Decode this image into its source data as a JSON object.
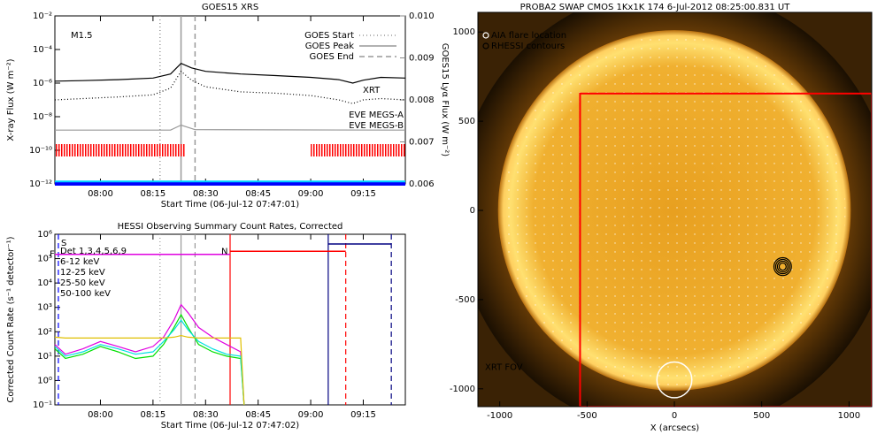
{
  "chart_data": [
    {
      "type": "line",
      "title": "GOES15 XRS",
      "log_scale": true,
      "xlabel": "Start Time (06-Jul-12 07:47:01)",
      "ylabel": "X-ray Flux (W m⁻²)",
      "y2label": "GOES15 Lyα Flux (W m⁻²)",
      "xlim": [
        "07:47",
        "09:27"
      ],
      "xticks": [
        "08:00",
        "08:15",
        "08:30",
        "08:45",
        "09:00",
        "09:15"
      ],
      "ylim": [
        1e-12,
        0.01
      ],
      "yticks": [
        {
          "value": 1e-12,
          "label": "10⁻¹²"
        },
        {
          "value": 1e-10,
          "label": "10⁻¹⁰"
        },
        {
          "value": 1e-08,
          "label": "10⁻⁸"
        },
        {
          "value": 1e-06,
          "label": "10⁻⁶"
        },
        {
          "value": 0.0001,
          "label": "10⁻⁴"
        },
        {
          "value": 0.01,
          "label": "10⁻²"
        }
      ],
      "y2lim": [
        0.006,
        0.01
      ],
      "y2ticks": [
        0.006,
        0.007,
        0.008,
        0.009,
        {
          "value": 0.01,
          "label": "0.010"
        }
      ],
      "series": [
        {
          "color": "#000000",
          "style": "solid",
          "x": [
            "07:47",
            "07:55",
            "08:05",
            "08:15",
            "08:20",
            "08:23",
            "08:26",
            "08:30",
            "08:40",
            "08:50",
            "09:00",
            "09:08",
            "09:12",
            "09:15",
            "09:20",
            "09:27"
          ],
          "values": [
            1.3e-06,
            1.4e-06,
            1.6e-06,
            2e-06,
            3.5e-06,
            1.5e-05,
            8e-06,
            5e-06,
            3.5e-06,
            2.8e-06,
            2.2e-06,
            1.6e-06,
            1e-06,
            1.5e-06,
            2.2e-06,
            2e-06
          ]
        },
        {
          "color": "#000000",
          "style": "dotted",
          "x": [
            "07:47",
            "07:55",
            "08:05",
            "08:15",
            "08:20",
            "08:23",
            "08:26",
            "08:30",
            "08:40",
            "08:50",
            "09:00",
            "09:08",
            "09:12",
            "09:15",
            "09:20",
            "09:27"
          ],
          "values": [
            1e-07,
            1.2e-07,
            1.5e-07,
            2e-07,
            5e-07,
            5e-06,
            1.5e-06,
            6e-07,
            3e-07,
            2.5e-07,
            1.8e-07,
            1e-07,
            6e-08,
            1e-07,
            1.2e-07,
            1e-07
          ]
        },
        {
          "color": "#999999",
          "style": "solid",
          "axis": "y2",
          "x": [
            "07:47",
            "08:20",
            "08:23",
            "08:27",
            "09:27"
          ],
          "values": [
            0.00728,
            0.00728,
            0.0074,
            0.00729,
            0.00728
          ]
        },
        {
          "name": "EVE MEGS-A",
          "color": "#0000ff",
          "style": "solid",
          "width": 4,
          "x": [
            "07:47",
            "09:27"
          ],
          "values": [
            1e-12,
            1e-12
          ]
        },
        {
          "name": "EVE MEGS-B",
          "color": "#00d0ff",
          "style": "solid",
          "width": 2,
          "x": [
            "07:47",
            "09:27"
          ],
          "values": [
            1.4e-12,
            1.4e-12
          ]
        }
      ],
      "events": [
        {
          "name": "GOES Start",
          "x": "08:17",
          "style": "dotted",
          "color": "#999999"
        },
        {
          "name": "GOES Peak",
          "x": "08:23",
          "style": "solid",
          "color": "#999999"
        },
        {
          "name": "GOES End",
          "x": "08:27",
          "style": "dashed",
          "color": "#999999"
        }
      ],
      "flare_class": "M1.5",
      "xrt": {
        "label": "XRT",
        "color": "#ff0000",
        "y": 1e-10,
        "intervals": [
          [
            "07:47",
            "08:24"
          ],
          [
            "09:00",
            "09:27"
          ]
        ]
      }
    },
    {
      "type": "line",
      "title": "HESSI Observing Summary Count Rates, Corrected",
      "log_scale": true,
      "xlabel": "Start Time (06-Jul-12 07:47:02)",
      "ylabel": "Corrected Count Rate (s⁻¹ detector⁻¹)",
      "xlim": [
        "07:47",
        "09:27"
      ],
      "xticks": [
        "08:00",
        "08:15",
        "08:30",
        "08:45",
        "09:00",
        "09:15"
      ],
      "ylim": [
        0.1,
        1000000.0
      ],
      "yticks": [
        {
          "value": 0.1,
          "label": "10⁻¹"
        },
        {
          "value": 1,
          "label": "10⁰"
        },
        {
          "value": 10,
          "label": "10¹"
        },
        {
          "value": 100,
          "label": "10²"
        },
        {
          "value": 1000,
          "label": "10³"
        },
        {
          "value": 10000,
          "label": "10⁴"
        },
        {
          "value": 100000,
          "label": "10⁵"
        },
        {
          "value": 1000000,
          "label": "10⁶"
        }
      ],
      "detectors": "Det 1,3,4,5,6,9",
      "x": [
        "07:47",
        "07:50",
        "07:55",
        "08:00",
        "08:05",
        "08:10",
        "08:15",
        "08:18",
        "08:21",
        "08:23",
        "08:25",
        "08:28",
        "08:32",
        "08:36",
        "08:40",
        "08:41"
      ],
      "series": [
        {
          "name": "6-12 keV",
          "color": "#e000e0",
          "values": [
            30,
            12,
            20,
            40,
            25,
            15,
            25,
            60,
            300,
            1300,
            600,
            150,
            60,
            30,
            15,
            0.1
          ]
        },
        {
          "name": "12-25 keV",
          "color": "#00e000",
          "values": [
            20,
            8,
            12,
            25,
            15,
            8,
            10,
            30,
            150,
            500,
            150,
            30,
            15,
            10,
            8,
            0.1
          ]
        },
        {
          "name": "25-50 keV",
          "color": "#00e0e0",
          "values": [
            25,
            10,
            15,
            30,
            20,
            12,
            15,
            40,
            120,
            300,
            120,
            40,
            20,
            12,
            10,
            0.1
          ]
        },
        {
          "name": "50-100 keV",
          "color": "#e0c000",
          "values": [
            60,
            55,
            55,
            55,
            55,
            55,
            55,
            55,
            60,
            70,
            60,
            55,
            55,
            55,
            55,
            0.1
          ]
        }
      ],
      "vlines": [
        {
          "x": "07:48",
          "color": "#0000ff",
          "style": "dashed",
          "label": "S"
        },
        {
          "x": "08:17",
          "color": "#999999",
          "style": "dotted"
        },
        {
          "x": "08:23",
          "color": "#999999",
          "style": "solid"
        },
        {
          "x": "08:27",
          "color": "#999999",
          "style": "dashed"
        },
        {
          "x": "08:37",
          "color": "#ff0000",
          "style": "solid"
        },
        {
          "x": "09:10",
          "color": "#ff0000",
          "style": "dashed"
        },
        {
          "x": "09:05",
          "color": "#000080",
          "style": "solid"
        },
        {
          "x": "09:23",
          "color": "#000080",
          "style": "dashed"
        }
      ],
      "states": [
        {
          "label": "F",
          "color": "#e000e0",
          "x": [
            "07:47",
            "08:37"
          ],
          "y": 150000
        },
        {
          "label": "N",
          "color": "#ff0000",
          "x": [
            "08:37",
            "09:10"
          ],
          "y": 200000
        },
        {
          "color": "#000080",
          "x": [
            "09:05",
            "09:23"
          ],
          "y": 400000
        }
      ]
    },
    {
      "type": "image",
      "title": "PROBA2 SWAP CMOS 1Kx1K 174   6-Jul-2012 08:25:00.831 UT",
      "xlabel": "X (arcsecs)",
      "xlim": [
        -1125,
        1130
      ],
      "ylim": [
        -1100,
        1110
      ],
      "xticks": [
        -1000,
        -500,
        0,
        500,
        1000
      ],
      "yticks": [
        -1000,
        -500,
        0,
        500,
        1000
      ],
      "legend": [
        {
          "name": "AIA flare location",
          "color": "#ffffff"
        },
        {
          "name": "RHESSI contours",
          "color": "#000000"
        }
      ],
      "aia": {
        "x": 0,
        "y": -950,
        "r": 100
      },
      "rhessi": {
        "x": 620,
        "y": -315,
        "radii": [
          20,
          30,
          40,
          50
        ]
      },
      "fov": {
        "label": "XRT FOV",
        "color": "#ff0000",
        "x": [
          -540,
          1130
        ],
        "y": [
          -1100,
          655
        ]
      }
    }
  ]
}
